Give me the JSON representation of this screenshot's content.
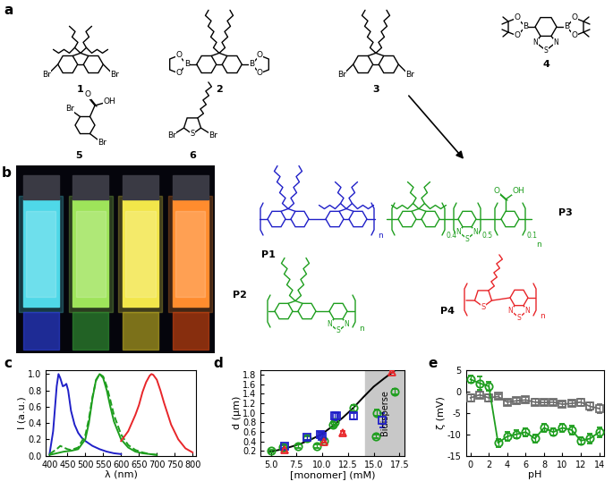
{
  "figure": {
    "a": {
      "label": "a",
      "monomers": [
        {
          "label": "1",
          "atoms": [
            "Br",
            "Br"
          ]
        },
        {
          "label": "2",
          "atoms": [
            "O",
            "B",
            "O",
            "O",
            "B",
            "O"
          ]
        },
        {
          "label": "3",
          "atoms": [
            "Br",
            "Br"
          ]
        },
        {
          "label": "4",
          "atoms": [
            "O",
            "B",
            "O",
            "O",
            "B",
            "O",
            "N",
            "S",
            "N"
          ]
        },
        {
          "label": "5",
          "atoms": [
            "O",
            "OH",
            "Br",
            "Br"
          ]
        },
        {
          "label": "6",
          "atoms": [
            "Br",
            "S",
            "Br"
          ]
        }
      ],
      "polymers": [
        {
          "label": "P1",
          "color": "#2020c8",
          "atoms": [
            "n"
          ]
        },
        {
          "label": "P3",
          "color": "#1e9e1e",
          "atoms": [
            "O",
            "OH",
            "N",
            "S",
            "N",
            "n"
          ],
          "fractions": [
            0.4,
            0.5,
            0.1
          ]
        },
        {
          "label": "P2",
          "color": "#1e9e1e",
          "atoms": [
            "N",
            "S",
            "N",
            "n"
          ]
        },
        {
          "label": "P4",
          "color": "#e8262a",
          "atoms": [
            "S",
            "N",
            "S",
            "N",
            "n"
          ]
        }
      ]
    },
    "b": {
      "label": "b"
    }
  },
  "chart_data": [
    {
      "type": "line",
      "label": "c",
      "x_label": "λ (nm)",
      "y_label": "I (a.u.)",
      "xlim": [
        390,
        810
      ],
      "ylim": [
        0,
        1.05
      ],
      "xticks": [
        400,
        450,
        500,
        550,
        600,
        650,
        700,
        750,
        800
      ],
      "yticks": [
        0.0,
        0.2,
        0.4,
        0.6,
        0.8,
        1.0
      ],
      "series": [
        {
          "color": "#2020c8",
          "line_style": "solid",
          "marker": "none",
          "x": [
            400,
            410,
            420,
            425,
            430,
            437,
            442,
            447,
            452,
            460,
            470,
            480,
            490,
            500,
            520,
            540,
            560,
            580,
            600
          ],
          "values": [
            0.02,
            0.3,
            0.85,
            1.0,
            0.95,
            0.85,
            0.86,
            0.88,
            0.8,
            0.55,
            0.38,
            0.28,
            0.22,
            0.18,
            0.12,
            0.08,
            0.05,
            0.03,
            0.02
          ]
        },
        {
          "color": "#1e9e1e",
          "line_style": "solid",
          "marker": "none",
          "x": [
            400,
            420,
            440,
            460,
            480,
            500,
            510,
            520,
            530,
            540,
            550,
            560,
            570,
            580,
            600,
            620,
            640,
            660,
            680,
            700
          ],
          "values": [
            0.01,
            0.03,
            0.05,
            0.06,
            0.08,
            0.2,
            0.4,
            0.7,
            0.93,
            1.0,
            0.95,
            0.8,
            0.6,
            0.42,
            0.2,
            0.1,
            0.05,
            0.03,
            0.02,
            0.01
          ]
        },
        {
          "color": "#1e9e1e",
          "line_style": "dashed",
          "marker": "none",
          "x": [
            400,
            420,
            430,
            440,
            450,
            460,
            480,
            500,
            510,
            520,
            530,
            540,
            550,
            560,
            570,
            580,
            600,
            620,
            640,
            660,
            680,
            700
          ],
          "values": [
            0.02,
            0.08,
            0.12,
            0.1,
            0.08,
            0.07,
            0.1,
            0.25,
            0.45,
            0.72,
            0.92,
            1.0,
            0.97,
            0.85,
            0.68,
            0.5,
            0.26,
            0.13,
            0.07,
            0.04,
            0.02,
            0.01
          ]
        },
        {
          "color": "#e8262a",
          "line_style": "solid",
          "marker": "none",
          "x": [
            600,
            620,
            640,
            650,
            660,
            670,
            680,
            685,
            690,
            700,
            710,
            720,
            740,
            760,
            780,
            800
          ],
          "values": [
            0.18,
            0.3,
            0.5,
            0.62,
            0.78,
            0.9,
            0.98,
            1.0,
            0.99,
            0.93,
            0.8,
            0.65,
            0.38,
            0.2,
            0.09,
            0.04
          ]
        }
      ]
    },
    {
      "type": "scatter",
      "label": "d",
      "x_label": "[monomer] (mM)",
      "y_label": "d (μm)",
      "xlim": [
        4,
        18
      ],
      "ylim": [
        0.1,
        1.9
      ],
      "xticks": [
        5.0,
        7.5,
        10.0,
        12.5,
        15.0,
        17.5
      ],
      "yticks": [
        0.2,
        0.4,
        0.6,
        0.8,
        1.0,
        1.2,
        1.4,
        1.6,
        1.8
      ],
      "shaded_region": {
        "x": [
          14.2,
          18
        ],
        "label": "Bidisperse"
      },
      "series": [
        {
          "type": "line",
          "color": "#000000",
          "line_style": "solid",
          "marker": "none",
          "x": [
            4.8,
            6,
            7,
            8,
            9,
            10,
            11,
            12,
            13,
            14,
            15,
            16,
            17
          ],
          "values": [
            0.18,
            0.23,
            0.29,
            0.36,
            0.45,
            0.56,
            0.72,
            0.9,
            1.1,
            1.33,
            1.55,
            1.72,
            1.88
          ]
        },
        {
          "color": "#1e9e1e",
          "line_style": "none",
          "marker": "circle",
          "x": [
            5.0,
            6.2,
            7.6,
            8.5,
            9.5,
            10.2,
            11.0,
            11.2,
            13.0,
            15.2,
            15.3,
            17.0
          ],
          "values": [
            0.2,
            0.28,
            0.3,
            0.47,
            0.3,
            0.42,
            0.75,
            0.8,
            1.1,
            0.5,
            1.0,
            1.45
          ],
          "errors": [
            0.03,
            0.03,
            0.03,
            0.04,
            0.03,
            0.04,
            0.05,
            0.05,
            0.06,
            0.04,
            0.06,
            0.06
          ]
        },
        {
          "color": "#2020c8",
          "line_style": "none",
          "marker": "square",
          "x": [
            6.3,
            8.5,
            9.8,
            10.0,
            11.2,
            11.4,
            13.0,
            15.8
          ],
          "values": [
            0.3,
            0.48,
            0.55,
            0.5,
            0.93,
            0.93,
            0.93,
            0.85
          ],
          "errors": [
            0.03,
            0.04,
            0.05,
            0.05,
            0.08,
            0.06,
            0.07,
            0.15
          ]
        },
        {
          "color": "#e8262a",
          "line_style": "none",
          "marker": "triangle",
          "x": [
            6.3,
            10.2,
            12.0,
            16.8
          ],
          "values": [
            0.22,
            0.4,
            0.58,
            1.86
          ],
          "errors": [
            0.03,
            0.03,
            0.04,
            0.03
          ]
        }
      ]
    },
    {
      "type": "line",
      "label": "e",
      "x_label": "pH",
      "y_label": "ζ (mV)",
      "xlim": [
        -0.5,
        14.5
      ],
      "ylim": [
        -15,
        5
      ],
      "xticks": [
        0,
        2,
        4,
        6,
        8,
        10,
        12,
        14
      ],
      "yticks": [
        -15,
        -10,
        -5,
        0,
        5
      ],
      "series": [
        {
          "color": "#6e6e6e",
          "line_style": "solid",
          "marker": "square",
          "x": [
            0,
            1,
            2,
            3,
            4,
            5,
            6,
            7,
            8,
            9,
            10,
            11,
            12,
            13,
            14
          ],
          "values": [
            -1.5,
            -0.8,
            -1.5,
            -1.2,
            -2.5,
            -2.2,
            -2.0,
            -2.5,
            -2.6,
            -2.5,
            -3.0,
            -2.8,
            -2.5,
            -3.5,
            -4.0
          ],
          "errors": [
            0.9,
            0.7,
            0.8,
            0.6,
            0.6,
            0.6,
            0.6,
            0.7,
            0.6,
            0.6,
            0.7,
            0.7,
            0.8,
            0.9,
            1.1
          ]
        },
        {
          "color": "#1e9e1e",
          "line_style": "solid",
          "marker": "circle",
          "x": [
            0,
            1,
            2,
            3,
            4,
            5,
            6,
            7,
            8,
            9,
            10,
            11,
            12,
            13,
            14
          ],
          "values": [
            2.8,
            1.9,
            1.2,
            -12.0,
            -10.5,
            -10.0,
            -9.5,
            -11.0,
            -8.5,
            -9.5,
            -8.5,
            -9.0,
            -11.5,
            -11.0,
            -9.5
          ],
          "errors": [
            0.8,
            1.6,
            1.0,
            0.9,
            1.0,
            0.9,
            0.9,
            1.0,
            0.9,
            0.8,
            0.9,
            1.0,
            0.9,
            1.2,
            1.2
          ]
        }
      ]
    }
  ]
}
